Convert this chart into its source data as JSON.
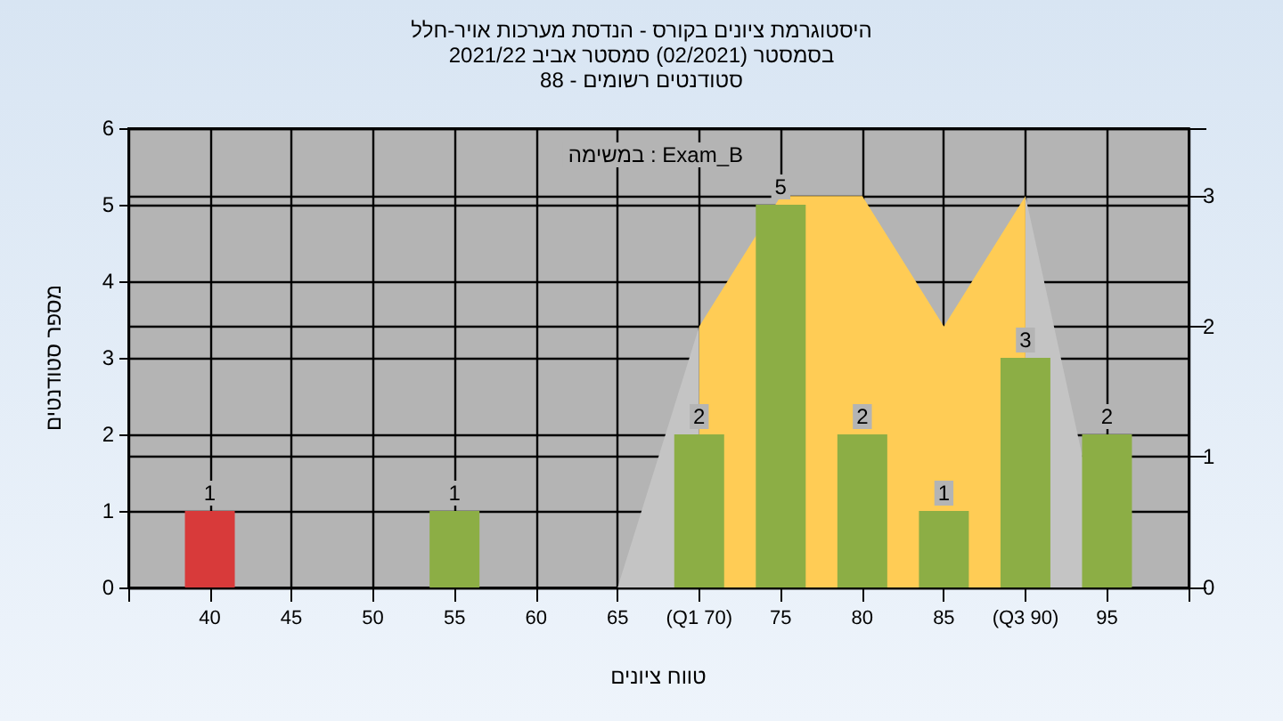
{
  "chart_data": {
    "type": "bar",
    "title": "היסטוגרמת ציונים בקורס - הנדסת מערכות אויר-חלל",
    "subtitle": "בסמסטר  (02/2021)  סמסטר אביב 2021/22\nסטודנטים רשומים - 88",
    "xlabel": "טווח ציונים",
    "ylabel": "מספר סטודנטים",
    "annotations": [
      "במשימה : Exam_B"
    ],
    "x": [
      40,
      55,
      70,
      75,
      80,
      85,
      90,
      95
    ],
    "series": [
      {
        "type": "area",
        "axis": "y2",
        "color": "#c4c4c4",
        "x": [
          65,
          70
        ],
        "values": [
          0,
          2
        ]
      },
      {
        "type": "area",
        "axis": "y2",
        "color": "#ffcc55",
        "x": [
          70,
          75,
          80,
          85,
          90
        ],
        "values": [
          2,
          3,
          3,
          2,
          3
        ]
      },
      {
        "type": "area",
        "axis": "y2",
        "color": "#c4c4c4",
        "x": [
          90,
          93.5
        ],
        "values": [
          3,
          1
        ]
      },
      {
        "colors": [
          "#d83a3a",
          "#8cae45",
          "#8cae45",
          "#8cae45",
          "#8cae45",
          "#8cae45",
          "#8cae45",
          "#8cae45"
        ],
        "values": [
          1,
          1,
          2,
          5,
          2,
          1,
          3,
          2
        ],
        "value_labels": [
          "1",
          "1",
          "2",
          "5",
          "2",
          "1",
          "3",
          "2"
        ]
      }
    ],
    "grid": true,
    "xlim": [
      35,
      100
    ],
    "xticks": [
      40,
      45,
      50,
      55,
      60,
      65,
      {
        "value": 70,
        "label": "(Q1 70)"
      },
      75,
      80,
      85,
      {
        "value": 90,
        "label": "(Q3 90)"
      },
      95
    ],
    "ylim": [
      0,
      6
    ],
    "yticks": [
      0,
      1,
      2,
      3,
      4,
      5,
      6
    ],
    "y2lim": [
      0,
      3.52
    ],
    "y2ticks": [
      0,
      1,
      2,
      3
    ]
  }
}
